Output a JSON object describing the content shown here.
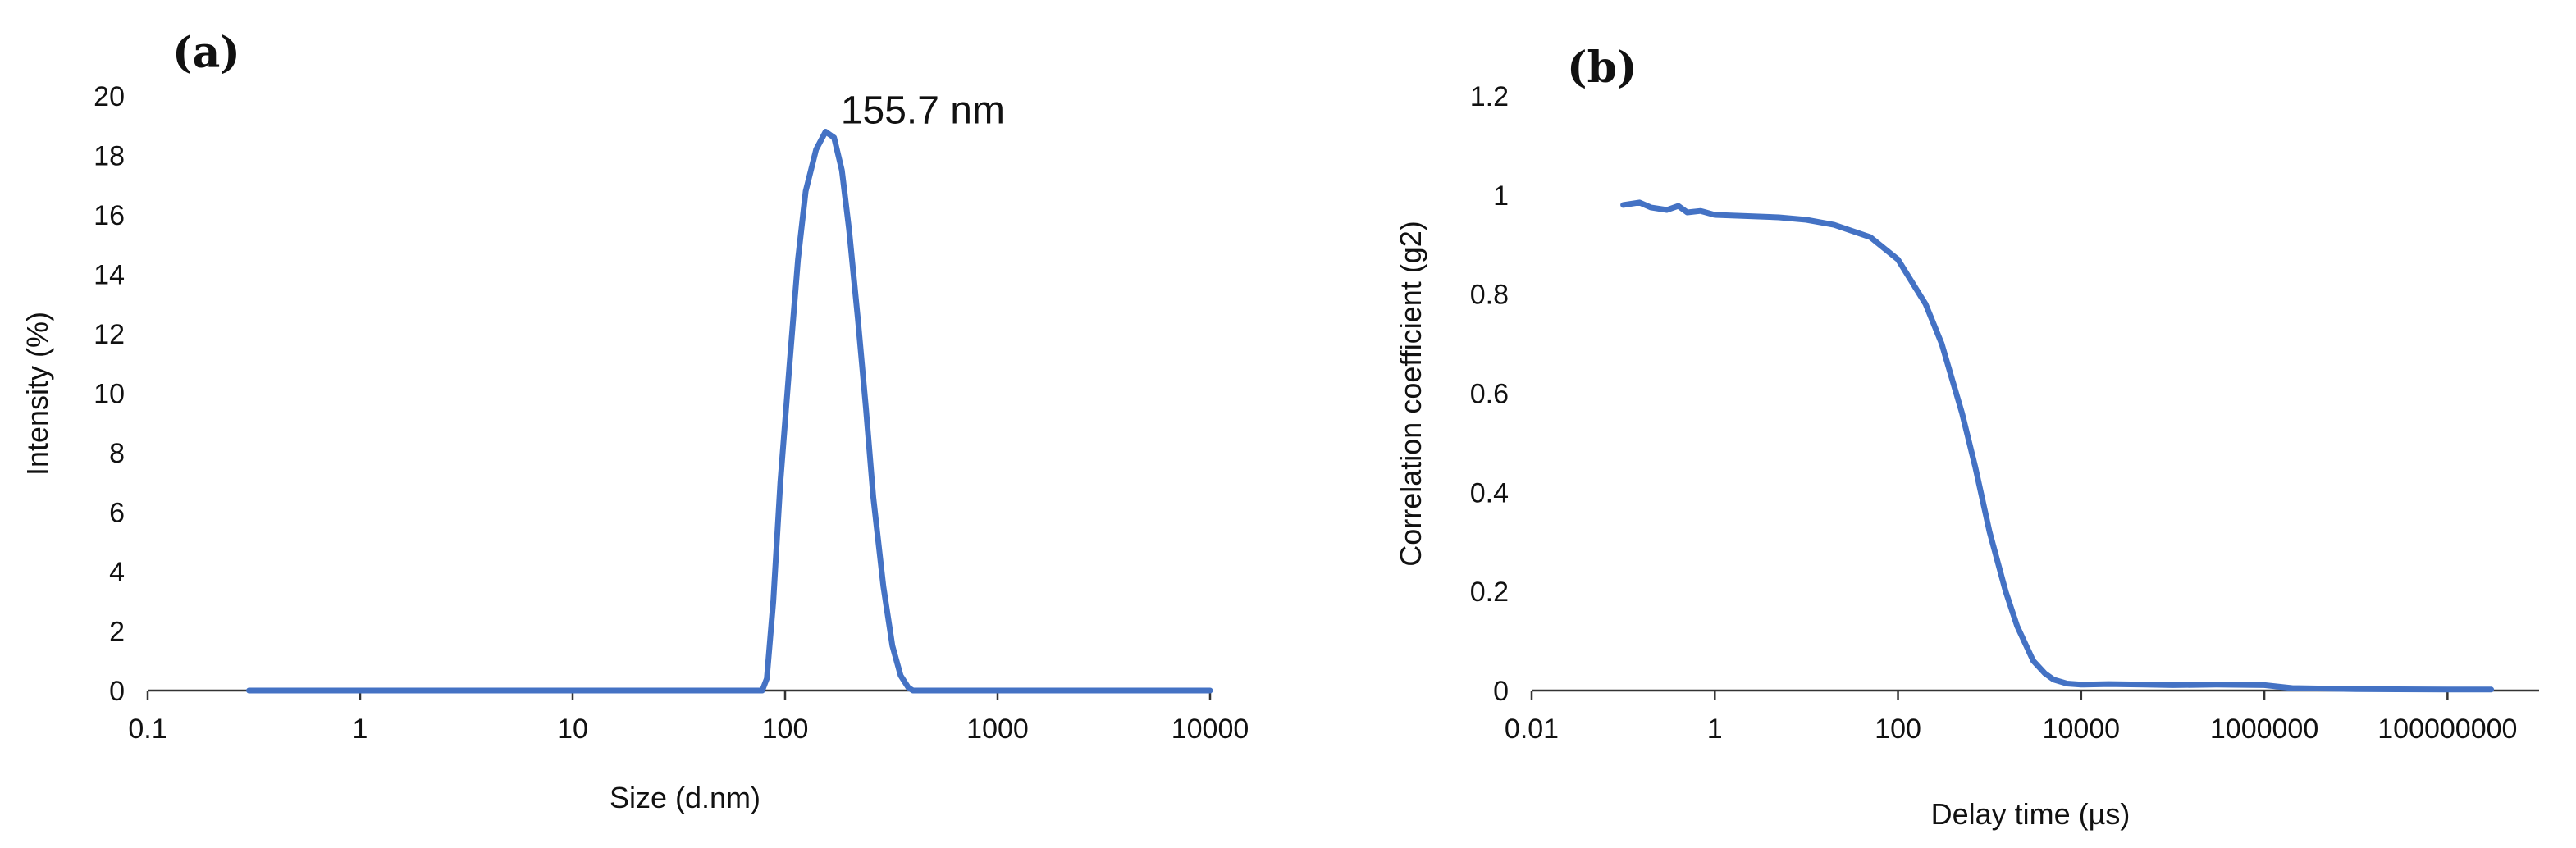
{
  "colors": {
    "series": "#4472C4",
    "axis": "#333333",
    "text": "#111111"
  },
  "chart_data": [
    {
      "panel_label": "(a)",
      "type": "line",
      "title": "",
      "xlabel": "Size (d.nm)",
      "ylabel": "Intensity (%)",
      "xscale": "log",
      "xlim": [
        0.1,
        10000
      ],
      "ylim": [
        0,
        20
      ],
      "x_ticks": [
        "0.1",
        "1",
        "10",
        "100",
        "1000",
        "10000"
      ],
      "x_tick_values": [
        0.1,
        1,
        10,
        100,
        1000,
        10000
      ],
      "y_ticks": [
        "0",
        "2",
        "4",
        "6",
        "8",
        "10",
        "12",
        "14",
        "16",
        "18",
        "20"
      ],
      "y_tick_values": [
        0,
        2,
        4,
        6,
        8,
        10,
        12,
        14,
        16,
        18,
        20
      ],
      "grid": false,
      "legend": "none",
      "annotation": {
        "text": "155.7 nm",
        "x": 155.7,
        "y": 18.8
      },
      "series": [
        {
          "name": "Intensity",
          "x": [
            0.3,
            60,
            78,
            82,
            88,
            95,
            105,
            115,
            125,
            140,
            155,
            170,
            185,
            200,
            220,
            240,
            260,
            290,
            320,
            350,
            380,
            400,
            1000,
            10000
          ],
          "y": [
            0,
            0,
            0,
            0.4,
            3,
            7,
            11,
            14.5,
            16.8,
            18.2,
            18.8,
            18.6,
            17.5,
            15.5,
            12.5,
            9.5,
            6.5,
            3.5,
            1.5,
            0.5,
            0.1,
            0,
            0,
            0
          ]
        }
      ]
    },
    {
      "panel_label": "(b)",
      "type": "line",
      "title": "",
      "xlabel": "Delay time (µs)",
      "ylabel": "Correlation coefficient (g2)",
      "xscale": "log",
      "xlim": [
        0.01,
        1000000000
      ],
      "ylim": [
        0,
        1.2
      ],
      "x_ticks": [
        "0.01",
        "1",
        "100",
        "10000",
        "1000000",
        "100000000"
      ],
      "x_tick_values": [
        0.01,
        1,
        100,
        10000,
        1000000,
        100000000
      ],
      "y_ticks": [
        "0",
        "0.2",
        "0.4",
        "0.6",
        "0.8",
        "1",
        "1.2"
      ],
      "y_tick_values": [
        0,
        0.2,
        0.4,
        0.6,
        0.8,
        1,
        1.2
      ],
      "grid": false,
      "legend": "none",
      "series": [
        {
          "name": "g2",
          "x": [
            0.1,
            0.15,
            0.2,
            0.3,
            0.4,
            0.5,
            0.7,
            1,
            2,
            5,
            10,
            20,
            50,
            100,
            200,
            300,
            500,
            700,
            1000,
            1500,
            2000,
            3000,
            4000,
            5000,
            7000,
            10000,
            20000,
            50000,
            100000,
            300000,
            1000000,
            2000000,
            10000000,
            100000000,
            300000000
          ],
          "y": [
            0.98,
            0.985,
            0.975,
            0.97,
            0.978,
            0.965,
            0.968,
            0.96,
            0.958,
            0.955,
            0.95,
            0.94,
            0.915,
            0.87,
            0.78,
            0.7,
            0.56,
            0.45,
            0.32,
            0.2,
            0.13,
            0.06,
            0.035,
            0.022,
            0.014,
            0.012,
            0.013,
            0.012,
            0.011,
            0.012,
            0.011,
            0.005,
            0.003,
            0.002,
            0.002
          ]
        }
      ]
    }
  ]
}
